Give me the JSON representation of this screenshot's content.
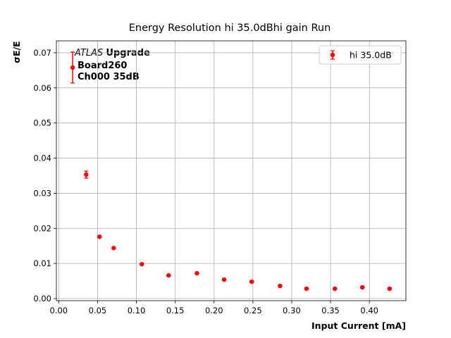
{
  "chart_data": {
    "type": "errorbar",
    "title": "Energy Resolution hi 35.0dBhi gain Run",
    "xlabel": "Input Current [mA]",
    "ylabel": "σE/E",
    "annotation": {
      "experiment": "ATLAS",
      "tag": "Upgrade",
      "lines": [
        "Board260",
        "Ch000 35dB"
      ]
    },
    "grid": true,
    "legend": "upper right",
    "xlim": [
      -0.003,
      0.447
    ],
    "ylim": [
      -0.0006,
      0.0734
    ],
    "xticks": [
      {
        "value": 0,
        "label": "0.00"
      },
      {
        "value": 0.05,
        "label": "0.05"
      },
      {
        "value": 0.1,
        "label": "0.10"
      },
      {
        "value": 0.15,
        "label": "0.15"
      },
      {
        "value": 0.2,
        "label": "0.20"
      },
      {
        "value": 0.25,
        "label": "0.25"
      },
      {
        "value": 0.3,
        "label": "0.30"
      },
      {
        "value": 0.35,
        "label": "0.35"
      },
      {
        "value": 0.4,
        "label": "0.40"
      }
    ],
    "yticks": [
      {
        "value": 0,
        "label": "0.00"
      },
      {
        "value": 0.01,
        "label": "0.01"
      },
      {
        "value": 0.02,
        "label": "0.02"
      },
      {
        "value": 0.03,
        "label": "0.03"
      },
      {
        "value": 0.04,
        "label": "0.04"
      },
      {
        "value": 0.05,
        "label": "0.05"
      },
      {
        "value": 0.06,
        "label": "0.06"
      },
      {
        "value": 0.07,
        "label": "0.07"
      }
    ],
    "series": [
      {
        "name": "hi 35.0dB",
        "color": "#ff0000",
        "x": [
          0.018,
          0.0354,
          0.0526,
          0.0708,
          0.107,
          0.1415,
          0.178,
          0.213,
          0.2485,
          0.285,
          0.319,
          0.3556,
          0.391,
          0.426
        ],
        "values": [
          0.0658,
          0.0353,
          0.0176,
          0.0144,
          0.0098,
          0.0066,
          0.0072,
          0.0054,
          0.0048,
          0.0036,
          0.0028,
          0.0028,
          0.0032,
          0.0028
        ],
        "errors": [
          0.0044,
          0.001,
          0.0002,
          0.0002,
          0.0002,
          0.0002,
          0.0002,
          0.0002,
          0.0002,
          0.0002,
          0.0002,
          0.0002,
          0.0002,
          0.0002
        ]
      }
    ]
  }
}
